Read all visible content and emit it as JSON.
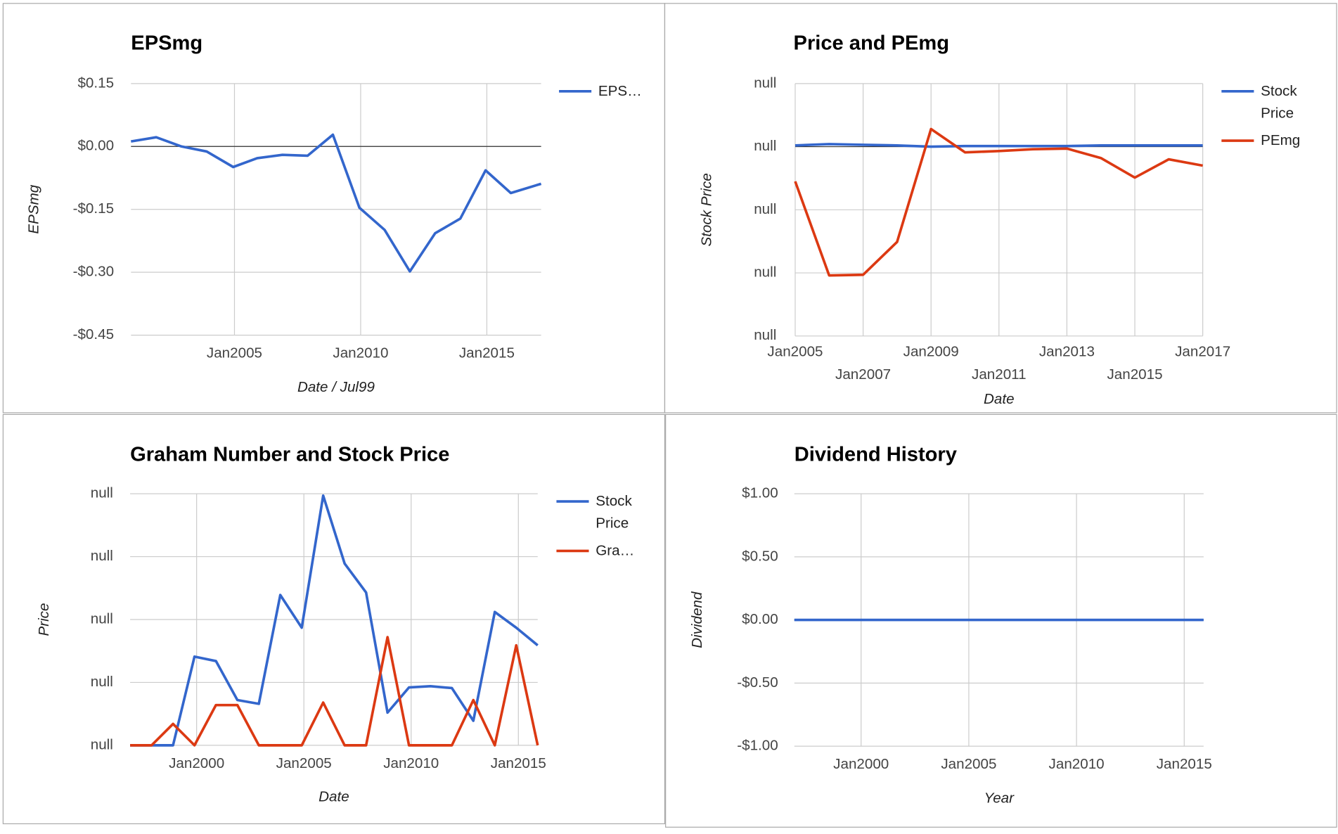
{
  "chart_data": [
    {
      "type": "line",
      "title": "EPSmg",
      "x_label": "Date / Jul99",
      "y_label": "EPSmg",
      "x": [
        2000.9,
        2001.9,
        2002.9,
        2003.9,
        2004.95,
        2005.9,
        2006.9,
        2007.9,
        2008.9,
        2009.95,
        2010.95,
        2011.95,
        2012.95,
        2013.95,
        2014.95,
        2015.95,
        2017.15
      ],
      "series": [
        {
          "name": "EPS…",
          "color": "#3366cc",
          "values": [
            0.012,
            0.022,
            0.0,
            -0.012,
            -0.049,
            -0.028,
            -0.02,
            -0.022,
            0.028,
            -0.146,
            -0.199,
            -0.298,
            -0.207,
            -0.172,
            -0.057,
            -0.111,
            -0.089
          ]
        }
      ],
      "xlim": [
        2000.9,
        2017.15
      ],
      "ylim": [
        -0.45,
        0.15
      ],
      "xticks": [
        {
          "value": 2005,
          "label": "Jan2005"
        },
        {
          "value": 2010,
          "label": "Jan2010"
        },
        {
          "value": 2015,
          "label": "Jan2015"
        }
      ],
      "yticks": [
        {
          "value": 0.15,
          "label": "$0.15"
        },
        {
          "value": 0,
          "label": "$0.00"
        },
        {
          "value": -0.15,
          "label": "-$0.15"
        },
        {
          "value": -0.3,
          "label": "-$0.30"
        },
        {
          "value": -0.45,
          "label": "-$0.45"
        }
      ],
      "grid": true,
      "zero_line": true,
      "legend": "right"
    },
    {
      "type": "line",
      "title": "Price and PEmg",
      "x_label": "Date",
      "y_label": "Stock Price",
      "x": [
        2005,
        2006,
        2007,
        2008,
        2009,
        2010,
        2011,
        2012,
        2013,
        2014,
        2015,
        2016,
        2017
      ],
      "series": [
        {
          "name": "Stock Price",
          "color": "#3366cc",
          "values": [
            0.02,
            0.04,
            0.03,
            0.02,
            0.0,
            0.01,
            0.01,
            0.01,
            0.01,
            0.02,
            0.02,
            0.02,
            0.02
          ]
        },
        {
          "name": "PEmg",
          "color": "#dc3912",
          "values": [
            -0.55,
            -2.04,
            -2.03,
            -1.51,
            0.28,
            -0.09,
            -0.07,
            -0.04,
            -0.03,
            -0.18,
            -0.49,
            -0.2,
            -0.3
          ]
        }
      ],
      "xlim": [
        2005,
        2017
      ],
      "ylim": [
        -3,
        1
      ],
      "xticks": [
        {
          "value": 2005,
          "label": "Jan2005"
        },
        {
          "value": 2007,
          "label": "Jan2007"
        },
        {
          "value": 2009,
          "label": "Jan2009"
        },
        {
          "value": 2011,
          "label": "Jan2011"
        },
        {
          "value": 2013,
          "label": "Jan2013"
        },
        {
          "value": 2015,
          "label": "Jan2015"
        },
        {
          "value": 2017,
          "label": "Jan2017"
        }
      ],
      "yticks": [
        {
          "value": 1,
          "label": "null"
        },
        {
          "value": 0,
          "label": "null"
        },
        {
          "value": -1,
          "label": "null"
        },
        {
          "value": -2,
          "label": "null"
        },
        {
          "value": -3,
          "label": "null"
        }
      ],
      "grid": true,
      "zero_line": true,
      "legend": "right"
    },
    {
      "type": "line",
      "title": "Graham Number and Stock Price",
      "x_label": "Date",
      "y_label": "Price",
      "x": [
        1996.9,
        1997.9,
        1998.9,
        1999.9,
        2000.9,
        2001.9,
        2002.9,
        2003.9,
        2004.9,
        2005.9,
        2006.9,
        2007.9,
        2008.9,
        2009.9,
        2010.9,
        2011.9,
        2012.9,
        2013.9,
        2014.9,
        2015.9
      ],
      "series": [
        {
          "name": "Stock Price",
          "color": "#3366cc",
          "values": [
            0,
            0,
            0,
            1.41,
            1.34,
            0.72,
            0.66,
            2.39,
            1.87,
            3.97,
            2.89,
            2.43,
            0.52,
            0.92,
            0.94,
            0.91,
            0.39,
            2.12,
            1.87,
            1.59
          ]
        },
        {
          "name": "Gra…",
          "color": "#dc3912",
          "values": [
            0,
            0,
            0.34,
            0,
            0.64,
            0.64,
            0,
            0,
            0,
            0.68,
            0,
            0,
            1.72,
            0,
            0,
            0,
            0.72,
            0,
            1.59,
            0
          ]
        }
      ],
      "xlim": [
        1996.9,
        2015.9
      ],
      "ylim": [
        0,
        4
      ],
      "xticks": [
        {
          "value": 2000,
          "label": "Jan2000"
        },
        {
          "value": 2005,
          "label": "Jan2005"
        },
        {
          "value": 2010,
          "label": "Jan2010"
        },
        {
          "value": 2015,
          "label": "Jan2015"
        }
      ],
      "yticks": [
        {
          "value": 4,
          "label": "null"
        },
        {
          "value": 3,
          "label": "null"
        },
        {
          "value": 2,
          "label": "null"
        },
        {
          "value": 1,
          "label": "null"
        },
        {
          "value": 0,
          "label": "null"
        }
      ],
      "grid": true,
      "zero_line": false,
      "legend": "right"
    },
    {
      "type": "line",
      "title": "Dividend History",
      "x_label": "Year",
      "y_label": "Dividend",
      "x": [
        1996.9,
        1997.9,
        1998.9,
        1999.9,
        2000.9,
        2001.9,
        2002.9,
        2003.9,
        2004.9,
        2005.9,
        2006.9,
        2007.9,
        2008.9,
        2009.9,
        2010.9,
        2011.9,
        2012.9,
        2013.9,
        2014.9,
        2015.9
      ],
      "series": [
        {
          "color": "#3366cc",
          "values": [
            0,
            0,
            0,
            0,
            0,
            0,
            0,
            0,
            0,
            0,
            0,
            0,
            0,
            0,
            0,
            0,
            0,
            0,
            0,
            0
          ]
        }
      ],
      "xlim": [
        1996.9,
        2015.9
      ],
      "ylim": [
        -1,
        1
      ],
      "xticks": [
        {
          "value": 2000,
          "label": "Jan2000"
        },
        {
          "value": 2005,
          "label": "Jan2005"
        },
        {
          "value": 2010,
          "label": "Jan2010"
        },
        {
          "value": 2015,
          "label": "Jan2015"
        }
      ],
      "yticks": [
        {
          "value": 1,
          "label": "$1.00"
        },
        {
          "value": 0.5,
          "label": "$0.50"
        },
        {
          "value": 0,
          "label": "$0.00"
        },
        {
          "value": -0.5,
          "label": "-$0.50"
        },
        {
          "value": -1,
          "label": "-$1.00"
        }
      ],
      "grid": true,
      "zero_line": true
    }
  ]
}
